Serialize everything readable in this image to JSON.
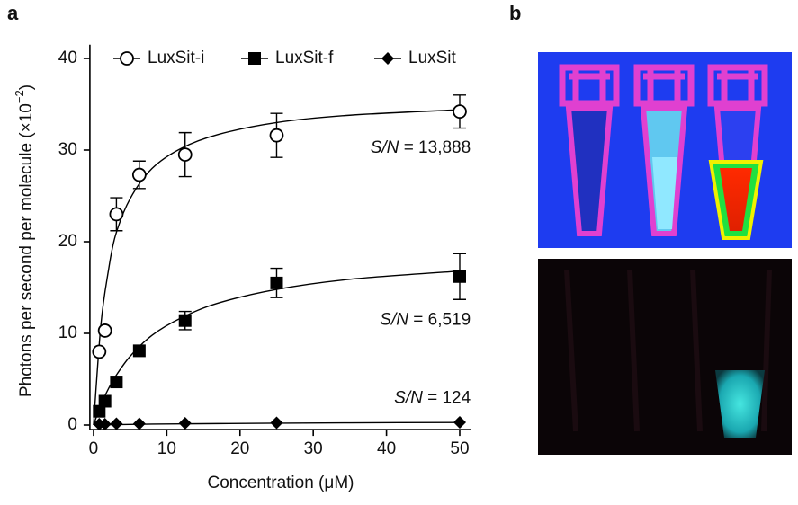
{
  "chart_data": {
    "type": "scatter",
    "panel_label": "a",
    "second_panel_label": "b",
    "x_label": "Concentration (μM)",
    "y_label": "Photons per second per molecule (×10",
    "y_label_exponent": "−2",
    "y_label_end": ")",
    "xlim": [
      -0.5,
      51.5
    ],
    "xticks": [
      0,
      10,
      20,
      30,
      40,
      50
    ],
    "ylim": [
      -0.5,
      41.5
    ],
    "yticks": [
      0,
      10,
      20,
      30,
      40
    ],
    "legend": "top",
    "series": [
      {
        "name": "LuxSit-i",
        "marker": "circle",
        "color": "#000000",
        "x": [
          0.78,
          1.56,
          3.125,
          6.25,
          12.5,
          25,
          50
        ],
        "values": [
          8.0,
          10.3,
          23.0,
          27.3,
          29.5,
          31.6,
          34.2
        ],
        "errors": [
          null,
          null,
          1.8,
          1.5,
          2.4,
          2.4,
          1.8
        ],
        "fit_x": [
          0,
          1,
          2,
          3,
          5,
          8,
          12,
          17,
          25,
          35,
          50
        ],
        "fit_values": [
          0,
          10.9,
          16.7,
          20.7,
          24.7,
          28.0,
          30.2,
          31.7,
          33.0,
          33.8,
          34.4
        ]
      },
      {
        "name": "LuxSit-f",
        "marker": "square",
        "color": "#000000",
        "x": [
          0.78,
          1.56,
          3.125,
          6.25,
          12.5,
          25,
          50
        ],
        "values": [
          1.5,
          2.6,
          4.7,
          8.1,
          11.4,
          15.5,
          16.2
        ],
        "errors": [
          null,
          null,
          null,
          null,
          1.0,
          1.6,
          2.5
        ],
        "fit_x": [
          0,
          1,
          2,
          3,
          5,
          8,
          12,
          17,
          25,
          35,
          50
        ],
        "fit_values": [
          0,
          2.2,
          3.9,
          5.3,
          7.5,
          9.8,
          11.7,
          13.3,
          14.8,
          15.9,
          16.8
        ]
      },
      {
        "name": "LuxSit",
        "marker": "diamond",
        "color": "#000000",
        "x": [
          0.78,
          1.56,
          3.125,
          6.25,
          12.5,
          25,
          50
        ],
        "values": [
          0.1,
          0.1,
          0.15,
          0.15,
          0.2,
          0.25,
          0.3
        ],
        "errors": [
          null,
          null,
          null,
          null,
          null,
          null,
          null
        ],
        "fit_x": [
          0,
          1,
          2,
          3,
          5,
          8,
          12,
          17,
          25,
          35,
          50
        ],
        "fit_values": [
          0,
          0.01,
          0.03,
          0.04,
          0.07,
          0.1,
          0.13,
          0.16,
          0.2,
          0.24,
          0.28
        ]
      }
    ],
    "annotations": [
      {
        "label": "S/N",
        "text": "= 13,888",
        "y": 30.2
      },
      {
        "label": "S/N",
        "text": "= 6,519",
        "y": 11.4
      },
      {
        "label": "S/N",
        "text": "= 124",
        "y": 2.9
      }
    ]
  }
}
